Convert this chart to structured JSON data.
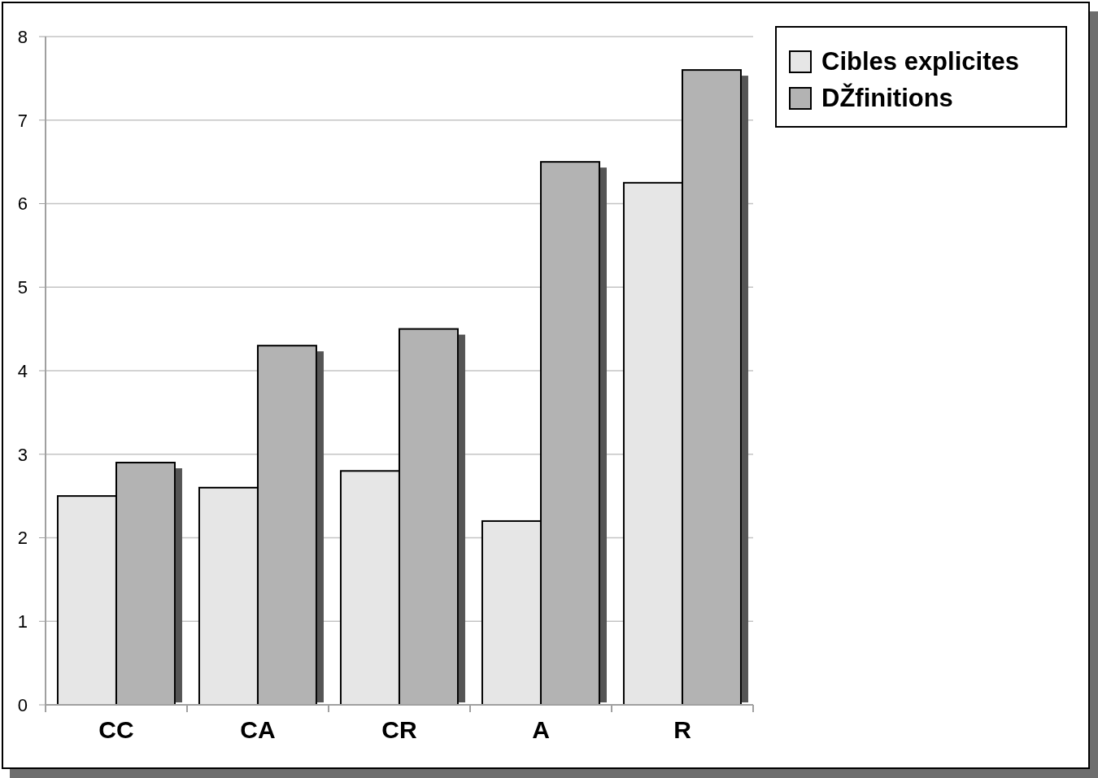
{
  "chart_data": {
    "type": "bar",
    "categories": [
      "CC",
      "CA",
      "CR",
      "A",
      "R"
    ],
    "series": [
      {
        "name": "Cibles explicites",
        "color": "#e6e6e6",
        "values": [
          2.5,
          2.6,
          2.8,
          2.2,
          6.25
        ]
      },
      {
        "name": "DŽfinitions",
        "color": "#b3b3b3",
        "values": [
          2.9,
          4.3,
          4.5,
          6.5,
          7.6
        ]
      }
    ],
    "ylim": [
      0,
      8
    ],
    "yticks": [
      0,
      1,
      2,
      3,
      4,
      5,
      6,
      7,
      8
    ],
    "grid": "y",
    "legend": "top right"
  }
}
